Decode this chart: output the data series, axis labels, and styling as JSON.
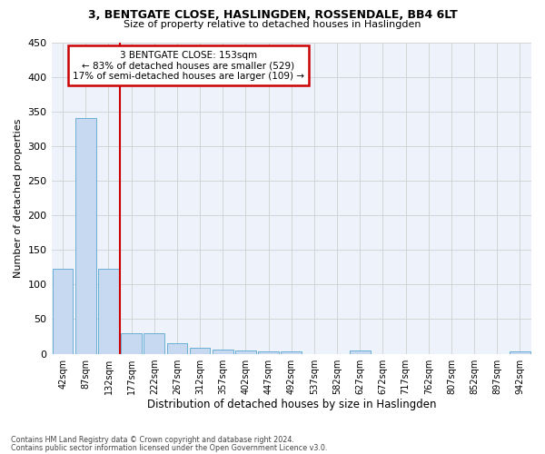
{
  "title": "3, BENTGATE CLOSE, HASLINGDEN, ROSSENDALE, BB4 6LT",
  "subtitle": "Size of property relative to detached houses in Haslingden",
  "xlabel": "Distribution of detached houses by size in Haslingden",
  "ylabel": "Number of detached properties",
  "bar_labels": [
    "42sqm",
    "87sqm",
    "132sqm",
    "177sqm",
    "222sqm",
    "267sqm",
    "312sqm",
    "357sqm",
    "402sqm",
    "447sqm",
    "492sqm",
    "537sqm",
    "582sqm",
    "627sqm",
    "672sqm",
    "717sqm",
    "762sqm",
    "807sqm",
    "852sqm",
    "897sqm",
    "942sqm"
  ],
  "bar_values": [
    123,
    340,
    123,
    30,
    29,
    15,
    9,
    6,
    5,
    3,
    3,
    0,
    0,
    5,
    0,
    0,
    0,
    0,
    0,
    0,
    4
  ],
  "bar_color": "#c6d9f0",
  "bar_edge_color": "#6baed6",
  "grid_color": "#d0d0d0",
  "bg_color": "#eef2fb",
  "vline_color": "#cc0000",
  "vline_x_index": 2.5,
  "annotation_text": "3 BENTGATE CLOSE: 153sqm\n← 83% of detached houses are smaller (529)\n17% of semi-detached houses are larger (109) →",
  "annotation_box_color": "#cc0000",
  "footer_line1": "Contains HM Land Registry data © Crown copyright and database right 2024.",
  "footer_line2": "Contains public sector information licensed under the Open Government Licence v3.0.",
  "ylim": [
    0,
    450
  ],
  "yticks": [
    0,
    50,
    100,
    150,
    200,
    250,
    300,
    350,
    400,
    450
  ]
}
